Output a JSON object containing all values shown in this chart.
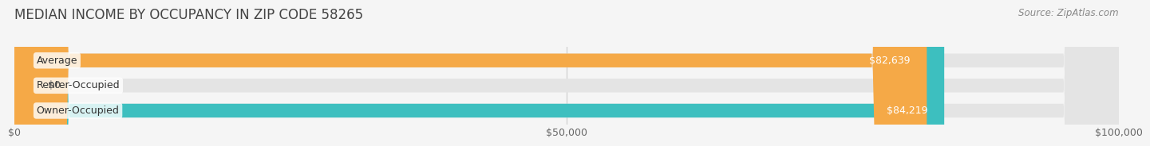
{
  "title": "MEDIAN INCOME BY OCCUPANCY IN ZIP CODE 58265",
  "source": "Source: ZipAtlas.com",
  "categories": [
    "Owner-Occupied",
    "Renter-Occupied",
    "Average"
  ],
  "values": [
    84219,
    0,
    82639
  ],
  "bar_colors": [
    "#3dbfbf",
    "#c9a8d4",
    "#f5a947"
  ],
  "value_labels": [
    "$84,219",
    "$0",
    "$82,639"
  ],
  "x_ticks": [
    0,
    50000,
    100000
  ],
  "x_tick_labels": [
    "$0",
    "$50,000",
    "$100,000"
  ],
  "xlim": [
    0,
    100000
  ],
  "background_color": "#f5f5f5",
  "bar_background_color": "#e4e4e4",
  "title_fontsize": 12,
  "source_fontsize": 8.5,
  "label_fontsize": 9,
  "value_fontsize": 9,
  "tick_fontsize": 9,
  "bar_height": 0.55
}
